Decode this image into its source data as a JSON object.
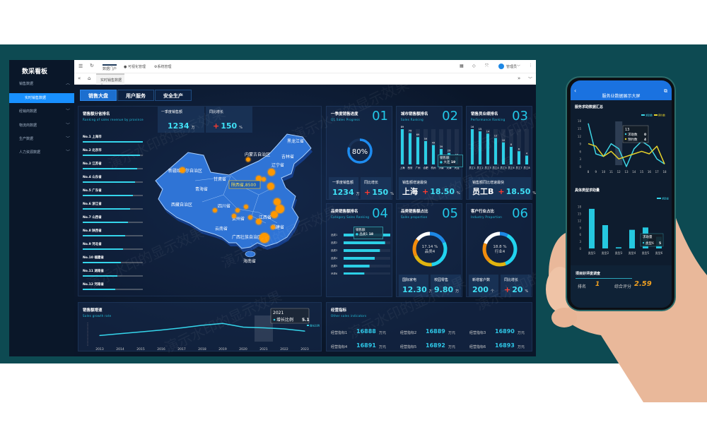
{
  "sidebar": {
    "title": "数采看板",
    "items": [
      {
        "label": "销售数据",
        "expanded": true
      },
      {
        "label": "实时销售数据",
        "active": true
      },
      {
        "label": "经销商数据"
      },
      {
        "label": "物流商数据"
      },
      {
        "label": "生产数据"
      },
      {
        "label": "人力资源数据"
      }
    ]
  },
  "topbar": {
    "menu": [
      "数据门户",
      "可视化管理",
      "系统管理"
    ],
    "user": "管理员",
    "icons": [
      "menu-fold-icon",
      "refresh-icon",
      "tag-icon",
      "fullscreen-icon",
      "avatar-icon",
      "more-icon"
    ]
  },
  "tabbar": {
    "tab": "实时销售数据",
    "close": "×"
  },
  "nav_tabs": [
    "销售大盘",
    "用户服务",
    "安全生产"
  ],
  "ranking": {
    "title": "销售额分省排名",
    "subtitle": "Ranking of sales revenue by province",
    "items": [
      {
        "label": "No.1  上海市",
        "value": 1.0
      },
      {
        "label": "No.2  北京市",
        "value": 0.95
      },
      {
        "label": "No.3  江苏省",
        "value": 0.91
      },
      {
        "label": "No.4  山东省",
        "value": 0.87
      },
      {
        "label": "No.5  广东省",
        "value": 0.83
      },
      {
        "label": "No.6  浙江省",
        "value": 0.79
      },
      {
        "label": "No.7  山西省",
        "value": 0.75
      },
      {
        "label": "No.8  陕西省",
        "value": 0.71
      },
      {
        "label": "No.9  河北省",
        "value": 0.67
      },
      {
        "label": "No.10  福建省",
        "value": 0.63
      },
      {
        "label": "No.11  湖南省",
        "value": 0.58
      },
      {
        "label": "No.12  河南省",
        "value": 0.54
      }
    ]
  },
  "kpi": {
    "sales_label": "一季度销售额",
    "sales_value": "1234",
    "sales_unit": "万",
    "growth_label": "同比增长",
    "growth_sign": "+",
    "growth_value": "150",
    "growth_unit": "%"
  },
  "map": {
    "labels": [
      "新疆维吾尔自治区",
      "西藏自治区",
      "青海省",
      "甘肃省",
      "内蒙古自治区",
      "黑龙江省",
      "吉林省",
      "辽宁省",
      "四川省",
      "贵州省",
      "云南省",
      "广西壮族自治区",
      "海南省",
      "江西省",
      "福建省"
    ],
    "tooltip": "陕西省,8500"
  },
  "p01": {
    "title": "一季度销售进度",
    "subtitle": "Q1 Sales Progress",
    "num": "01",
    "progress": 80,
    "progress_label": "80%",
    "c1_label": "一季度销售额",
    "c1_value": "1234",
    "c1_unit": "万",
    "c2_label": "同比增长",
    "c2_sign": "+",
    "c2_value": "150",
    "c2_unit": "%"
  },
  "p02": {
    "title": "城市销售额排名",
    "subtitle": "Sales Ranking",
    "num": "02",
    "chart_data": {
      "type": "bar",
      "categories": [
        "上海",
        "西安",
        "广州",
        "合肥",
        "杭州",
        "济南",
        "天津",
        "大连"
      ],
      "values": [
        89,
        79,
        69,
        59,
        49,
        39,
        29,
        19
      ]
    },
    "tooltip": {
      "title": "销售额",
      "label": "大连",
      "value": "19"
    },
    "card_label": "销售额增速最快",
    "card_city": "上海",
    "card_sign": "+",
    "card_value": "18.50",
    "card_unit": "%"
  },
  "p03": {
    "title": "销售员业绩排名",
    "subtitle": "Performance Ranking",
    "num": "03",
    "chart_data": {
      "type": "bar",
      "categories": [
        "员工1",
        "员工2",
        "员工3",
        "员工4",
        "员工5",
        "员工6",
        "员工7",
        "员工8"
      ],
      "values": [
        16,
        15,
        14,
        12,
        10,
        8,
        6,
        4
      ]
    },
    "card_label": "销售额同比增速最快",
    "card_name": "员工B",
    "card_sign": "+",
    "card_value": "18.50",
    "card_unit": "%"
  },
  "p04": {
    "title": "品类销售额排名",
    "subtitle": "Category Sales Ranking",
    "num": "04",
    "chart_data": {
      "type": "bar",
      "orientation": "horizontal",
      "categories": [
        "品类1",
        "品类2",
        "品类3",
        "品类4",
        "品类5",
        "品类6",
        "品类7",
        "品类8"
      ],
      "values": [
        18,
        16,
        14,
        12,
        10,
        8,
        6,
        4
      ]
    },
    "tooltip": {
      "title": "销售额",
      "label": "品类1",
      "value": "18"
    }
  },
  "p05": {
    "title": "品类销售额占比",
    "subtitle": "Sales proportion",
    "num": "05",
    "chart_data": {
      "type": "pie",
      "segments": [
        {
          "value": 18,
          "color": "#1e88e5"
        },
        {
          "value": 30,
          "color": "#22d3ee"
        },
        {
          "value": 20,
          "color": "#e0b40f"
        },
        {
          "value": 17.14,
          "color": "#f28c0c"
        },
        {
          "value": 14.86,
          "color": "#ffffff"
        }
      ]
    },
    "center_value": "17.14 %",
    "center_label": "品类4",
    "c1_label": "国际家电",
    "c1_value": "12.30",
    "c1_unit": "万",
    "c2_label": "校园零售",
    "c2_value": "9.80",
    "c2_unit": "万"
  },
  "p06": {
    "title": "客户行业占比",
    "subtitle": "Industry Proportion",
    "num": "06",
    "chart_data": {
      "type": "pie",
      "segments": [
        {
          "value": 8,
          "color": "#1e88e5"
        },
        {
          "value": 36,
          "color": "#22d3ee"
        },
        {
          "value": 18,
          "color": "#e0b40f"
        },
        {
          "value": 18.8,
          "color": "#f28c0c"
        },
        {
          "value": 19.2,
          "color": "#ffffff"
        }
      ]
    },
    "center_value": "18.8 %",
    "center_label": "行业4",
    "c1_label": "新增客户数",
    "c1_value": "200",
    "c1_unit": "个",
    "c2_label": "同比增长",
    "c2_sign": "+",
    "c2_value": "20",
    "c2_unit": "%"
  },
  "growth": {
    "title": "销售额增速",
    "subtitle": "Sales growth rate",
    "legend": "增长比例",
    "chart_data": {
      "type": "line",
      "x": [
        "2013",
        "2014",
        "2015",
        "2016",
        "2017",
        "2018",
        "2019",
        "2020",
        "2021",
        "2022",
        "2023"
      ],
      "values": [
        3.0,
        3.5,
        4.0,
        4.5,
        5.1,
        5.8,
        6.3,
        5.3,
        5.1,
        4.8,
        4.2
      ]
    },
    "tooltip": {
      "title": "2021",
      "label": "增长比例",
      "value": "5.1"
    }
  },
  "indicators": {
    "title": "经营指标",
    "subtitle": "Other sales indicators",
    "items": [
      {
        "label": "经营指标1",
        "value": "16888",
        "unit": "万元"
      },
      {
        "label": "经营指标2",
        "value": "16889",
        "unit": "万元"
      },
      {
        "label": "经营指标3",
        "value": "16890",
        "unit": "万元"
      },
      {
        "label": "经营指标4",
        "value": "16891",
        "unit": "万元"
      },
      {
        "label": "经营指标5",
        "value": "16892",
        "unit": "万元"
      },
      {
        "label": "经营指标6",
        "value": "16893",
        "unit": "万元"
      }
    ]
  },
  "watermark": "演示水印的显示效果",
  "phone": {
    "header": "服务业数据展示大屏",
    "line": {
      "title": "服务求助数据汇总",
      "legend": [
        "求助数",
        "预约数"
      ],
      "chart_data": {
        "type": "line",
        "x": [
          "8",
          "9",
          "10",
          "11",
          "12",
          "13",
          "14",
          "15",
          "16",
          "17",
          "18"
        ],
        "y_ticks": [
          "0",
          "3",
          "6",
          "9",
          "12",
          "15",
          "18"
        ],
        "series": [
          {
            "name": "求助数",
            "color": "#3dd6e6",
            "values": [
              17,
              5,
              4,
              9,
              7,
              0,
              7,
              10,
              8,
              3,
              1
            ]
          },
          {
            "name": "预约数",
            "color": "#e6d22a",
            "values": [
              9,
              8,
              4,
              6,
              3,
              4,
              5,
              6,
              5,
              8,
              1
            ]
          }
        ]
      },
      "tooltip": {
        "title": "13",
        "rows": [
          {
            "label": "求助数",
            "value": "0"
          },
          {
            "label": "预约数",
            "value": "4"
          }
        ]
      }
    },
    "bar": {
      "title": "具体类型求助量",
      "legend": "求助量",
      "chart_data": {
        "type": "bar",
        "categories": [
          "类型1",
          "类型2",
          "类型3",
          "类型4",
          "类型5",
          "类型6"
        ],
        "values": [
          17,
          10,
          0.5,
          8,
          9,
          5
        ],
        "y_ticks": [
          "0",
          "3",
          "6",
          "9",
          "12",
          "15",
          "18"
        ]
      },
      "tooltip": {
        "title": "求助量",
        "label": "类型6",
        "value": "5"
      }
    },
    "survey": {
      "title": "项目好评度调查",
      "rank_label": "排名",
      "rank_value": "1",
      "score_label": "综合评分",
      "score_value": "2.59"
    }
  }
}
